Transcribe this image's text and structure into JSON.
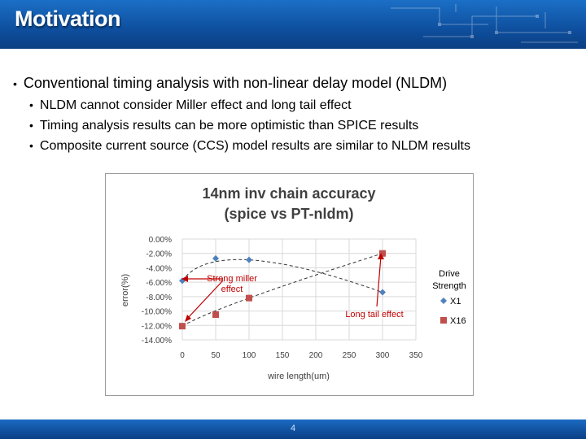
{
  "slide": {
    "title": "Motivation",
    "bullet_main": "Conventional timing analysis with non-linear delay model (NLDM)",
    "sub_bullets": [
      "NLDM cannot consider Miller effect and long tail effect",
      "Timing analysis results can be more optimistic than SPICE results",
      "Composite current source (CCS) model results are similar to NLDM results"
    ],
    "page_number": "4"
  },
  "chart_data": {
    "type": "scatter",
    "title_line1": "14nm inv chain accuracy",
    "title_line2": "(spice vs PT-nldm)",
    "xlabel": "wire length(um)",
    "ylabel": "error(%)",
    "xlim": [
      0,
      350
    ],
    "ylim": [
      -14,
      0
    ],
    "x_ticks": [
      "0",
      "50",
      "100",
      "150",
      "200",
      "250",
      "300",
      "350"
    ],
    "y_ticks": [
      "0.00%",
      "-2.00%",
      "-4.00%",
      "-6.00%",
      "-8.00%",
      "-10.00%",
      "-12.00%",
      "-14.00%"
    ],
    "legend_title_line1": "Drive",
    "legend_title_line2": "Strength",
    "series": [
      {
        "name": "X1",
        "color": "#4f81bd",
        "marker": "diamond",
        "points": [
          {
            "x": 0,
            "y": -5.8
          },
          {
            "x": 50,
            "y": -2.7
          },
          {
            "x": 100,
            "y": -2.9
          },
          {
            "x": 300,
            "y": -7.4
          }
        ]
      },
      {
        "name": "X16",
        "color": "#c0504d",
        "marker": "square",
        "points": [
          {
            "x": 0,
            "y": -12.1
          },
          {
            "x": 50,
            "y": -10.5
          },
          {
            "x": 100,
            "y": -8.2
          },
          {
            "x": 300,
            "y": -2.0
          }
        ]
      }
    ],
    "annotations": [
      {
        "name": "strong-miller",
        "line1": "Strong miller",
        "line2": "effect"
      },
      {
        "name": "long-tail",
        "text": "Long tail effect"
      }
    ]
  }
}
